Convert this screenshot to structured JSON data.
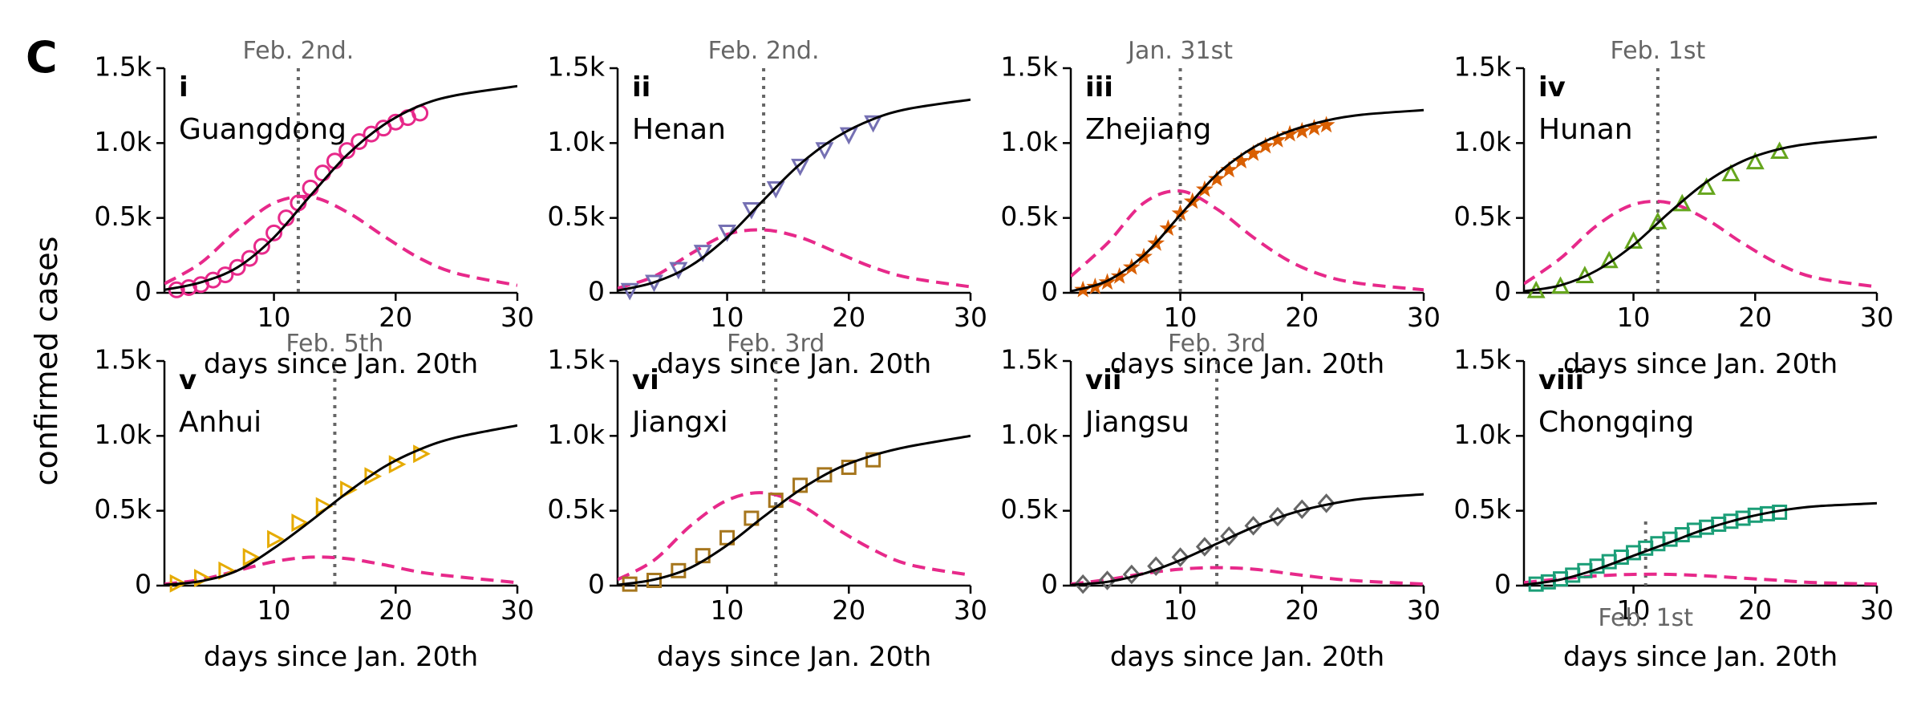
{
  "figure": {
    "panel_label": "C",
    "ylabel": "confirmed cases"
  },
  "chart_data": [
    {
      "type": "line",
      "roman": "i",
      "title": "Guangdong",
      "xlabel": "days since Jan. 20th",
      "xlim": [
        1,
        30
      ],
      "ylim": [
        0,
        1500
      ],
      "xticks": [
        10,
        20,
        30
      ],
      "yticks": [
        0,
        500,
        1000,
        1500
      ],
      "yticklabels": [
        "0",
        "0.5k",
        "1.0k",
        "1.5k"
      ],
      "marker": "circle",
      "marker_color": "#e7298a",
      "vline": {
        "x": 12,
        "label": "Feb. 2nd."
      },
      "data_x": [
        2,
        3,
        4,
        5,
        6,
        7,
        8,
        9,
        10,
        11,
        12,
        13,
        14,
        15,
        16,
        17,
        18,
        19,
        20,
        21,
        22
      ],
      "data_y": [
        20,
        35,
        55,
        85,
        120,
        170,
        230,
        310,
        400,
        500,
        600,
        700,
        800,
        880,
        950,
        1010,
        1060,
        1100,
        1140,
        1170,
        1200
      ],
      "fit": {
        "x": [
          1,
          4,
          7,
          10,
          13,
          16,
          19,
          22,
          25,
          30
        ],
        "y": [
          20,
          70,
          170,
          370,
          650,
          920,
          1120,
          1250,
          1320,
          1380
        ]
      },
      "rate": {
        "x": [
          1,
          4,
          7,
          10,
          13,
          16,
          19,
          22,
          25,
          30
        ],
        "y": [
          60,
          200,
          420,
          600,
          640,
          540,
          380,
          230,
          130,
          50
        ]
      }
    },
    {
      "type": "line",
      "roman": "ii",
      "title": "Henan",
      "xlabel": "days since Jan. 20th",
      "xlim": [
        1,
        30
      ],
      "ylim": [
        0,
        1500
      ],
      "xticks": [
        10,
        20,
        30
      ],
      "yticks": [
        0,
        500,
        1000,
        1500
      ],
      "yticklabels": [
        "0",
        "0.5k",
        "1.0k",
        "1.5k"
      ],
      "marker": "tri-down",
      "marker_color": "#7570b3",
      "vline": {
        "x": 13,
        "label": "Feb. 2nd."
      },
      "data_x": [
        2,
        4,
        6,
        8,
        10,
        12,
        14,
        16,
        18,
        20,
        22
      ],
      "data_y": [
        20,
        75,
        160,
        275,
        410,
        560,
        700,
        850,
        960,
        1060,
        1140
      ],
      "fit": {
        "x": [
          1,
          4,
          7,
          10,
          13,
          16,
          19,
          22,
          25,
          30
        ],
        "y": [
          15,
          70,
          180,
          370,
          620,
          860,
          1040,
          1160,
          1230,
          1290
        ]
      },
      "rate": {
        "x": [
          1,
          4,
          7,
          10,
          13,
          16,
          19,
          22,
          25,
          30
        ],
        "y": [
          30,
          110,
          260,
          390,
          420,
          370,
          270,
          170,
          100,
          40
        ]
      }
    },
    {
      "type": "line",
      "roman": "iii",
      "title": "Zhejiang",
      "xlabel": "days since Jan. 20th",
      "xlim": [
        1,
        30
      ],
      "ylim": [
        0,
        1500
      ],
      "xticks": [
        10,
        20,
        30
      ],
      "yticks": [
        0,
        500,
        1000,
        1500
      ],
      "yticklabels": [
        "0",
        "0.5k",
        "1.0k",
        "1.5k"
      ],
      "marker": "star",
      "marker_color": "#d95f02",
      "vline": {
        "x": 10,
        "label": "Jan. 31st"
      },
      "data_x": [
        2,
        3,
        4,
        5,
        6,
        7,
        8,
        9,
        10,
        11,
        12,
        13,
        14,
        15,
        16,
        17,
        18,
        19,
        20,
        21,
        22
      ],
      "data_y": [
        20,
        40,
        70,
        110,
        170,
        240,
        330,
        430,
        530,
        610,
        690,
        760,
        820,
        880,
        930,
        980,
        1020,
        1060,
        1080,
        1100,
        1120
      ],
      "fit": {
        "x": [
          1,
          4,
          7,
          10,
          13,
          16,
          19,
          22,
          25,
          30
        ],
        "y": [
          10,
          80,
          250,
          520,
          790,
          970,
          1080,
          1150,
          1190,
          1220
        ]
      },
      "rate": {
        "x": [
          1,
          4,
          7,
          10,
          13,
          16,
          19,
          22,
          25,
          30
        ],
        "y": [
          110,
          330,
          600,
          680,
          560,
          370,
          210,
          110,
          60,
          20
        ]
      }
    },
    {
      "type": "line",
      "roman": "iv",
      "title": "Hunan",
      "xlabel": "days since Jan. 20th",
      "xlim": [
        1,
        30
      ],
      "ylim": [
        0,
        1500
      ],
      "xticks": [
        10,
        20,
        30
      ],
      "yticks": [
        0,
        500,
        1000,
        1500
      ],
      "yticklabels": [
        "0",
        "0.5k",
        "1.0k",
        "1.5k"
      ],
      "marker": "tri-up",
      "marker_color": "#66a61e",
      "vline": {
        "x": 12,
        "label": "Feb. 1st"
      },
      "data_x": [
        2,
        4,
        6,
        8,
        10,
        12,
        14,
        16,
        18,
        20,
        22
      ],
      "data_y": [
        10,
        40,
        110,
        210,
        340,
        470,
        590,
        700,
        790,
        870,
        940
      ],
      "fit": {
        "x": [
          1,
          4,
          7,
          10,
          13,
          16,
          19,
          22,
          25,
          30
        ],
        "y": [
          10,
          50,
          150,
          320,
          540,
          740,
          880,
          960,
          1000,
          1040
        ]
      },
      "rate": {
        "x": [
          1,
          4,
          7,
          10,
          13,
          16,
          19,
          22,
          25,
          30
        ],
        "y": [
          60,
          230,
          450,
          590,
          600,
          490,
          330,
          190,
          100,
          40
        ]
      }
    },
    {
      "type": "line",
      "roman": "v",
      "title": "Anhui",
      "xlabel": "days since Jan. 20th",
      "xlim": [
        1,
        30
      ],
      "ylim": [
        0,
        1500
      ],
      "xticks": [
        10,
        20,
        30
      ],
      "yticks": [
        0,
        500,
        1000,
        1500
      ],
      "yticklabels": [
        "0",
        "0.5k",
        "1.0k",
        "1.5k"
      ],
      "marker": "tri-right",
      "marker_color": "#e6ab02",
      "vline": {
        "x": 15,
        "label": "Feb. 5th"
      },
      "data_x": [
        2,
        4,
        6,
        8,
        10,
        12,
        14,
        16,
        18,
        20,
        22
      ],
      "data_y": [
        15,
        50,
        100,
        190,
        310,
        420,
        530,
        640,
        730,
        810,
        880
      ],
      "fit": {
        "x": [
          1,
          4,
          7,
          10,
          13,
          16,
          19,
          22,
          25,
          30
        ],
        "y": [
          5,
          30,
          100,
          250,
          430,
          620,
          790,
          910,
          990,
          1070
        ]
      },
      "rate": {
        "x": [
          1,
          4,
          7,
          10,
          13,
          16,
          19,
          22,
          25,
          30
        ],
        "y": [
          10,
          40,
          100,
          160,
          190,
          180,
          140,
          90,
          60,
          20
        ]
      }
    },
    {
      "type": "line",
      "roman": "vi",
      "title": "Jiangxi",
      "xlabel": "days since Jan. 20th",
      "xlim": [
        1,
        30
      ],
      "ylim": [
        0,
        1500
      ],
      "xticks": [
        10,
        20,
        30
      ],
      "yticks": [
        0,
        500,
        1000,
        1500
      ],
      "yticklabels": [
        "0",
        "0.5k",
        "1.0k",
        "1.5k"
      ],
      "marker": "square",
      "marker_color": "#a6761d",
      "vline": {
        "x": 14,
        "label": "Feb. 3rd"
      },
      "data_x": [
        2,
        4,
        6,
        8,
        10,
        12,
        14,
        16,
        18,
        20,
        22
      ],
      "data_y": [
        10,
        35,
        100,
        200,
        320,
        450,
        570,
        670,
        740,
        790,
        840
      ],
      "fit": {
        "x": [
          1,
          4,
          7,
          10,
          13,
          16,
          19,
          22,
          25,
          30
        ],
        "y": [
          5,
          40,
          120,
          270,
          460,
          640,
          780,
          870,
          930,
          1000
        ]
      },
      "rate": {
        "x": [
          1,
          4,
          7,
          10,
          13,
          16,
          19,
          22,
          25,
          30
        ],
        "y": [
          40,
          170,
          400,
          570,
          620,
          540,
          380,
          240,
          140,
          70
        ]
      }
    },
    {
      "type": "line",
      "roman": "vii",
      "title": "Jiangsu",
      "xlabel": "days since Jan. 20th",
      "xlim": [
        1,
        30
      ],
      "ylim": [
        0,
        1500
      ],
      "xticks": [
        10,
        20,
        30
      ],
      "yticks": [
        0,
        500,
        1000,
        1500
      ],
      "yticklabels": [
        "0",
        "0.5k",
        "1.0k",
        "1.5k"
      ],
      "marker": "diamond",
      "marker_color": "#666666",
      "vline": {
        "x": 13,
        "label": "Feb. 3rd"
      },
      "data_x": [
        2,
        4,
        6,
        8,
        10,
        12,
        14,
        16,
        18,
        20,
        22
      ],
      "data_y": [
        10,
        35,
        75,
        130,
        190,
        260,
        330,
        400,
        460,
        510,
        550
      ],
      "fit": {
        "x": [
          1,
          4,
          7,
          10,
          13,
          16,
          19,
          22,
          25,
          30
        ],
        "y": [
          5,
          25,
          80,
          170,
          280,
          390,
          480,
          540,
          580,
          610
        ]
      },
      "rate": {
        "x": [
          1,
          4,
          7,
          10,
          13,
          16,
          19,
          22,
          25,
          30
        ],
        "y": [
          10,
          40,
          80,
          110,
          120,
          110,
          80,
          50,
          30,
          10
        ]
      }
    },
    {
      "type": "line",
      "roman": "viii",
      "title": "Chongqing",
      "xlabel": "days since Jan. 20th",
      "xlim": [
        1,
        30
      ],
      "ylim": [
        0,
        1500
      ],
      "xticks": [
        10,
        20,
        30
      ],
      "yticks": [
        0,
        500,
        1000,
        1500
      ],
      "yticklabels": [
        "0",
        "0.5k",
        "1.0k",
        "1.5k"
      ],
      "marker": "square",
      "marker_color": "#1b9e77",
      "vline": {
        "x": 11,
        "label": "Feb. 1st",
        "label_y": 780,
        "top_y": 650
      },
      "data_x": [
        2,
        3,
        4,
        5,
        6,
        7,
        8,
        9,
        10,
        11,
        12,
        13,
        14,
        15,
        16,
        17,
        18,
        19,
        20,
        21,
        22
      ],
      "data_y": [
        10,
        25,
        45,
        70,
        100,
        130,
        160,
        190,
        220,
        250,
        280,
        310,
        340,
        370,
        390,
        410,
        430,
        450,
        470,
        480,
        490
      ],
      "fit": {
        "x": [
          1,
          4,
          7,
          10,
          13,
          16,
          19,
          22,
          25,
          30
        ],
        "y": [
          5,
          40,
          110,
          200,
          290,
          380,
          450,
          500,
          530,
          550
        ]
      },
      "rate": {
        "x": [
          1,
          4,
          7,
          10,
          13,
          16,
          19,
          22,
          25,
          30
        ],
        "y": [
          20,
          45,
          65,
          75,
          75,
          65,
          50,
          35,
          20,
          10
        ]
      }
    }
  ]
}
